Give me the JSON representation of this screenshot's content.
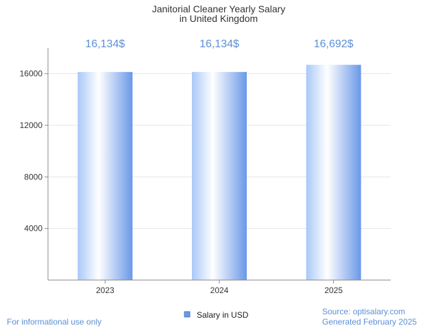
{
  "chart_data": {
    "type": "bar",
    "title_lines": [
      "Janitorial Cleaner Yearly Salary",
      "in United Kingdom"
    ],
    "categories": [
      "2023",
      "2024",
      "2025"
    ],
    "values": [
      16134,
      16134,
      16692
    ],
    "value_labels": [
      "16,134$",
      "16,134$",
      "16,692$"
    ],
    "yticks": [
      4000,
      8000,
      12000,
      16000
    ],
    "ylim": [
      0,
      18000
    ],
    "grid": true,
    "legend": {
      "label": "Salary in USD",
      "placement": "bottom-center"
    },
    "xlabel": "",
    "ylabel": ""
  },
  "footer": {
    "disclaimer": "For informational use only",
    "source": "Source: optisalary.com",
    "generated": "Generated February 2025"
  },
  "colors": {
    "bar_edge": "#6a98e8",
    "bar_light": "#ffffff",
    "label": "#5b8fd6",
    "grid": "#e5e5e5",
    "axis": "#888888"
  }
}
